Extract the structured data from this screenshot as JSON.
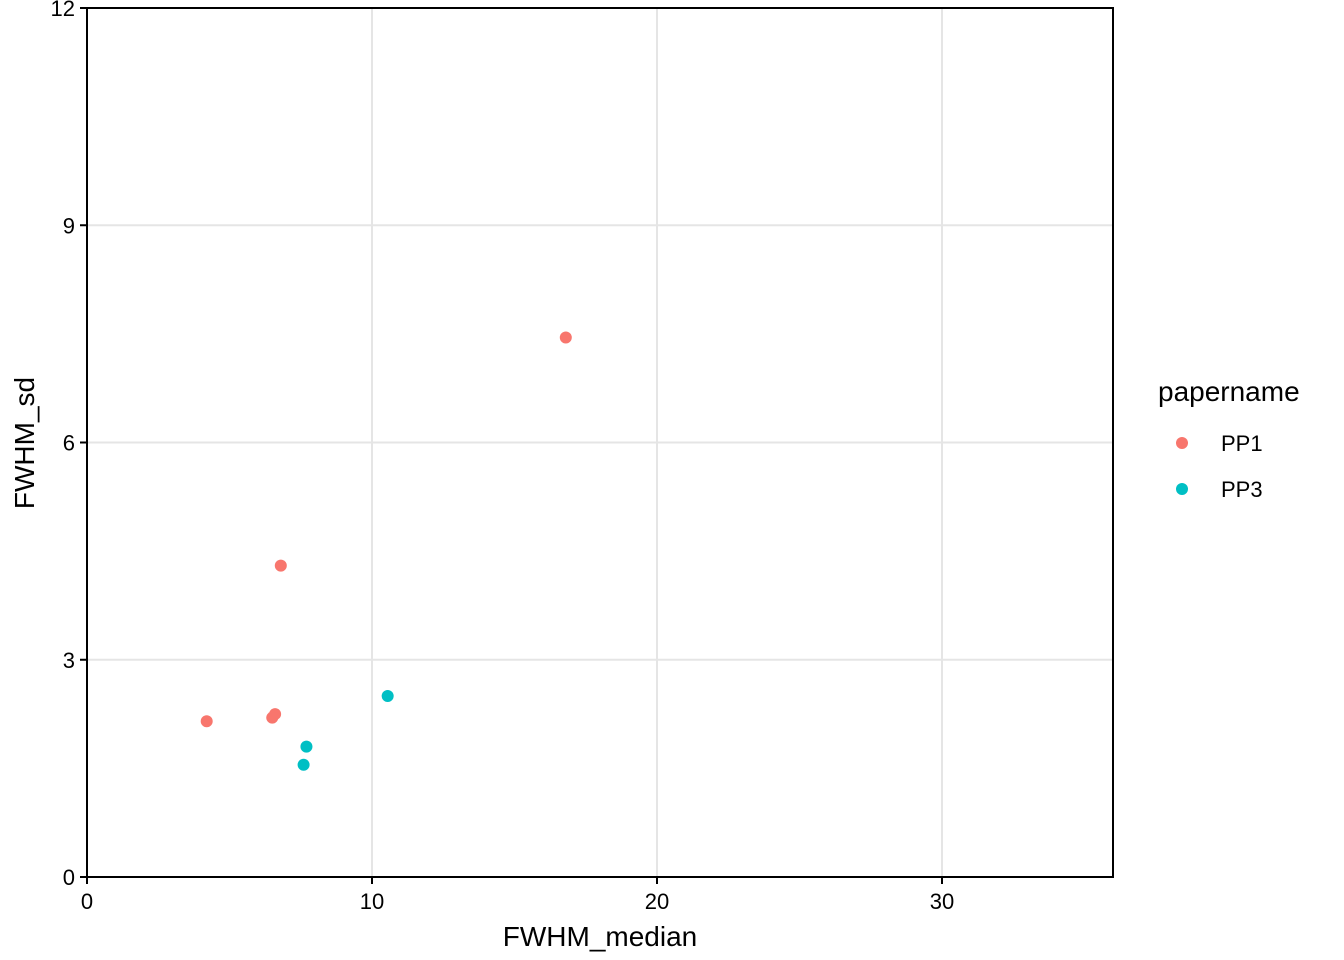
{
  "chart_data": {
    "type": "scatter",
    "xlabel": "FWHM_median",
    "ylabel": "FWHM_sd",
    "xlim": [
      0,
      36
    ],
    "ylim": [
      0,
      12
    ],
    "x_ticks": [
      0,
      10,
      20,
      30
    ],
    "y_ticks": [
      0,
      3,
      6,
      9,
      12
    ],
    "grid": true,
    "legend": {
      "title": "papername",
      "position": "right"
    },
    "series": [
      {
        "name": "PP1",
        "color": "#F8766D",
        "points": [
          {
            "x": 4.2,
            "y": 2.15
          },
          {
            "x": 6.5,
            "y": 2.2
          },
          {
            "x": 6.6,
            "y": 2.25
          },
          {
            "x": 6.8,
            "y": 4.3
          },
          {
            "x": 16.8,
            "y": 7.45
          }
        ]
      },
      {
        "name": "PP3",
        "color": "#00BFC4",
        "points": [
          {
            "x": 7.6,
            "y": 1.55
          },
          {
            "x": 7.7,
            "y": 1.8
          },
          {
            "x": 10.55,
            "y": 2.5
          }
        ]
      }
    ]
  }
}
